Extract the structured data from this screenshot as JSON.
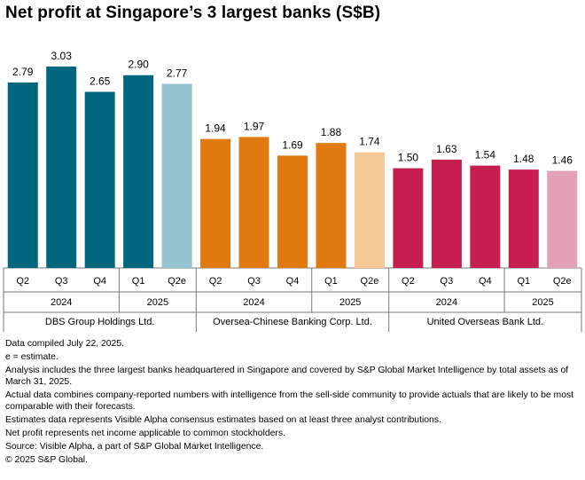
{
  "title": "Net profit at Singapore’s 3 largest banks (S$B)",
  "chart_data": {
    "type": "bar",
    "title": "Net profit at Singapore’s 3 largest banks (S$B)",
    "ylabel": "S$B",
    "ylim": [
      0,
      3.03
    ],
    "grid": false,
    "groups": [
      {
        "name": "DBS Group Holdings Ltd.",
        "colors": {
          "actual": "#00677e",
          "estimate": "#95c3d0"
        },
        "bars": [
          {
            "quarter": "Q2",
            "year": "2024",
            "value": 2.79,
            "label": "2.79",
            "estimate": false
          },
          {
            "quarter": "Q3",
            "year": "2024",
            "value": 3.03,
            "label": "3.03",
            "estimate": false
          },
          {
            "quarter": "Q4",
            "year": "2024",
            "value": 2.65,
            "label": "2.65",
            "estimate": false
          },
          {
            "quarter": "Q1",
            "year": "2025",
            "value": 2.9,
            "label": "2.90",
            "estimate": false
          },
          {
            "quarter": "Q2e",
            "year": "2025",
            "value": 2.77,
            "label": "2.77",
            "estimate": true
          }
        ]
      },
      {
        "name": "Oversea-Chinese Banking Corp. Ltd.",
        "colors": {
          "actual": "#e07a10",
          "estimate": "#f5c896"
        },
        "bars": [
          {
            "quarter": "Q2",
            "year": "2024",
            "value": 1.94,
            "label": "1.94",
            "estimate": false
          },
          {
            "quarter": "Q3",
            "year": "2024",
            "value": 1.97,
            "label": "1.97",
            "estimate": false
          },
          {
            "quarter": "Q4",
            "year": "2024",
            "value": 1.69,
            "label": "1.69",
            "estimate": false
          },
          {
            "quarter": "Q1",
            "year": "2025",
            "value": 1.88,
            "label": "1.88",
            "estimate": false
          },
          {
            "quarter": "Q2e",
            "year": "2025",
            "value": 1.74,
            "label": "1.74",
            "estimate": true
          }
        ]
      },
      {
        "name": "United Overseas Bank Ltd.",
        "colors": {
          "actual": "#c41f4f",
          "estimate": "#e2a1b4"
        },
        "bars": [
          {
            "quarter": "Q2",
            "year": "2024",
            "value": 1.5,
            "label": "1.50",
            "estimate": false
          },
          {
            "quarter": "Q3",
            "year": "2024",
            "value": 1.63,
            "label": "1.63",
            "estimate": false
          },
          {
            "quarter": "Q4",
            "year": "2024",
            "value": 1.54,
            "label": "1.54",
            "estimate": false
          },
          {
            "quarter": "Q1",
            "year": "2025",
            "value": 1.48,
            "label": "1.48",
            "estimate": false
          },
          {
            "quarter": "Q2e",
            "year": "2025",
            "value": 1.46,
            "label": "1.46",
            "estimate": true
          }
        ]
      }
    ]
  },
  "notes": [
    "Data compiled July 22, 2025.",
    "e = estimate.",
    "Analysis includes the three largest banks headquartered in Singapore and covered by S&P Global Market Intelligence by total assets as of March 31, 2025.",
    "Actual data combines company-reported numbers with intelligence from the sell-side community to provide actuals that are likely to be most comparable with their forecasts.",
    "Estimates data represents Visible Alpha consensus estimates based on at least three analyst contributions.",
    "Net profit represents net income applicable to common stockholders.",
    "Source: Visible Alpha, a part of S&P Global Market Intelligence.",
    "© 2025 S&P Global."
  ]
}
